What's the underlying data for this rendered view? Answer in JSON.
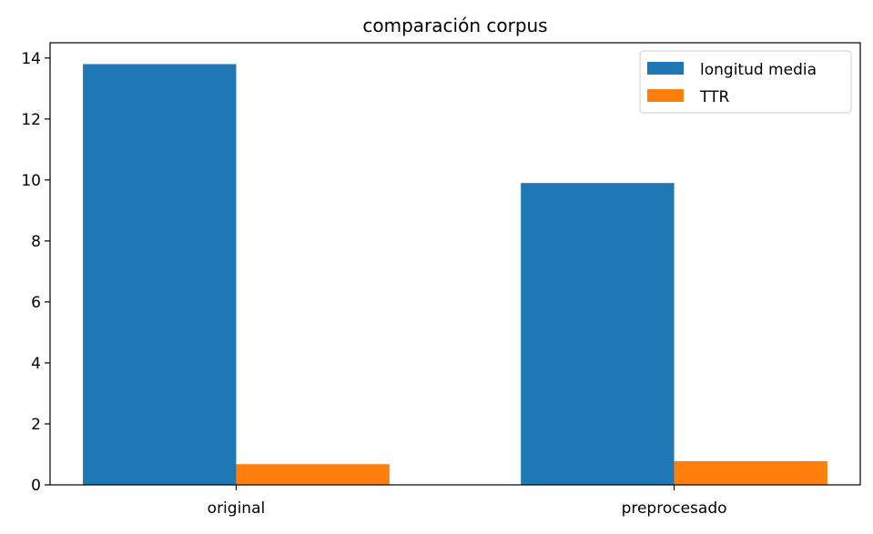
{
  "chart_data": {
    "type": "bar",
    "title": "comparación corpus",
    "xlabel": "",
    "ylabel": "",
    "categories": [
      "original",
      "preprocesado"
    ],
    "series": [
      {
        "name": "longitud media",
        "values": [
          13.8,
          9.9
        ],
        "color": "#1f77b4"
      },
      {
        "name": "TTR",
        "values": [
          0.68,
          0.78
        ],
        "color": "#ff7f0e"
      }
    ],
    "ylim": [
      0,
      14.5
    ],
    "yticks": [
      0,
      2,
      4,
      6,
      8,
      10,
      12,
      14
    ],
    "grid": false,
    "legend_position": "top-right"
  }
}
